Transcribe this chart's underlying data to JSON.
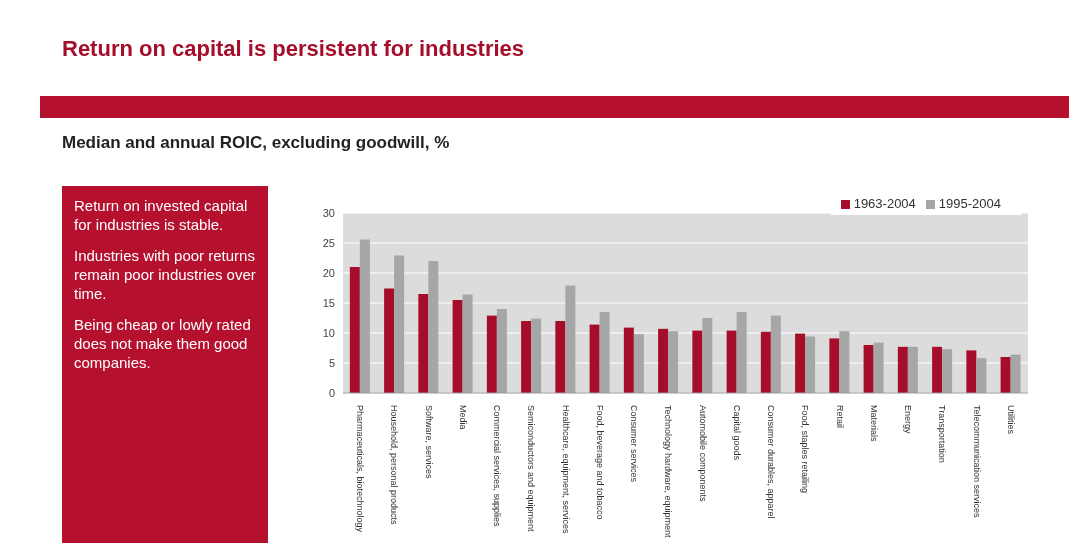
{
  "chart_data": {
    "type": "bar",
    "title": "Return on capital is persistent for industries",
    "subtitle": "Median and annual ROIC, excluding goodwill, %",
    "annotations": [
      "Return on invested capital for industries is stable.",
      "Industries with poor returns remain poor industries over time.",
      "Being cheap or lowly rated does not make them good companies."
    ],
    "categories": [
      "Pharmaceuticals, biotechnology",
      "Household, personal products",
      "Software, services",
      "Media",
      "Commercial services, supplies",
      "Semiconductors and equipment",
      "Healthcare, equipment, services",
      "Food, beverage and tobacco",
      "Consumer services",
      "Technology hardware, equipment",
      "Automobile components",
      "Capital goods",
      "Consumer durables, apparel",
      "Food, staples retailing",
      "Retail",
      "Materials",
      "Energy",
      "Transportation",
      "Telecommunication services",
      "Utilities"
    ],
    "series": [
      {
        "name": "1963-2004",
        "color": "#a50d2a",
        "values": [
          21.0,
          17.4,
          16.5,
          15.5,
          12.9,
          12.0,
          12.0,
          11.4,
          10.9,
          10.7,
          10.4,
          10.4,
          10.2,
          9.9,
          9.1,
          8.0,
          7.7,
          7.7,
          7.1,
          6.0
        ]
      },
      {
        "name": "1995-2004",
        "color": "#a6a6a6",
        "values": [
          25.6,
          22.9,
          22.0,
          16.4,
          14.0,
          12.4,
          17.9,
          13.5,
          9.8,
          10.3,
          12.5,
          13.5,
          12.9,
          9.4,
          10.3,
          8.4,
          7.7,
          7.3,
          5.8,
          6.4
        ]
      }
    ],
    "ylim": [
      0,
      30
    ],
    "yticks": [
      0,
      5,
      10,
      15,
      20,
      25,
      30
    ],
    "grid": "y",
    "legend": "top right"
  }
}
